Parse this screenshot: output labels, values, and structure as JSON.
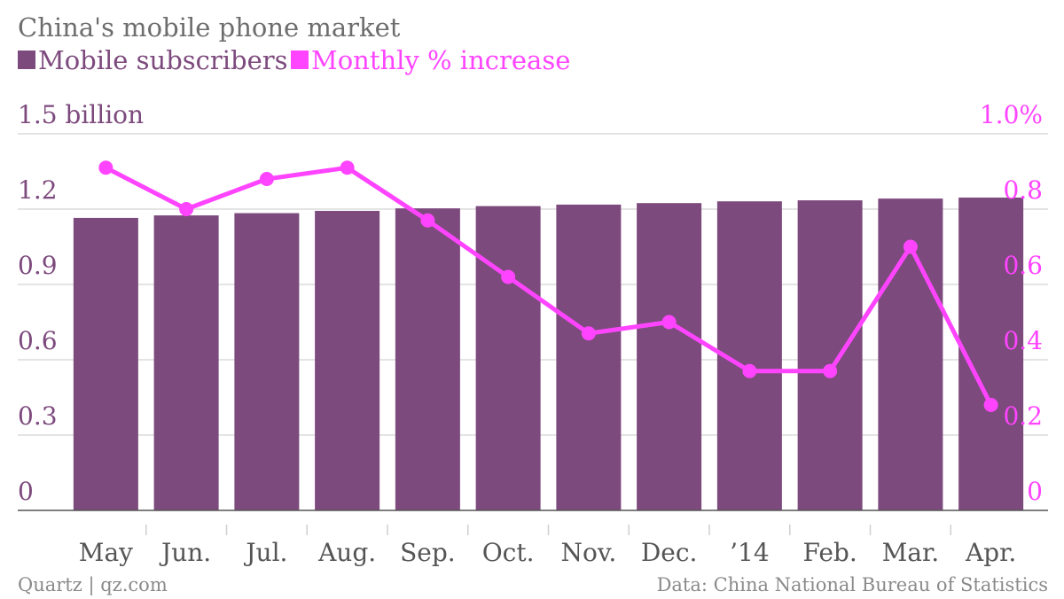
{
  "chart_data": {
    "type": "bar",
    "title": "China's mobile phone market",
    "categories": [
      "May",
      "Jun.",
      "Jul.",
      "Aug.",
      "Sep.",
      "Oct.",
      "Nov.",
      "Dec.",
      "’14",
      "Feb.",
      "Mar.",
      "Apr."
    ],
    "series": [
      {
        "name": "Mobile subscribers",
        "type": "bar",
        "axis": "left",
        "color": "#7d4a7d",
        "values": [
          1.165,
          1.175,
          1.184,
          1.193,
          1.203,
          1.212,
          1.218,
          1.224,
          1.231,
          1.235,
          1.242,
          1.246
        ]
      },
      {
        "name": "Monthly % increase",
        "type": "line",
        "axis": "right",
        "color": "#ff44ff",
        "values": [
          0.91,
          0.8,
          0.88,
          0.91,
          0.77,
          0.62,
          0.47,
          0.5,
          0.37,
          0.37,
          0.7,
          0.28
        ]
      }
    ],
    "y_left": {
      "ticks": [
        "0",
        "0.3",
        "0.6",
        "0.9",
        "1.2",
        "1.5 billion"
      ],
      "tick_values": [
        0,
        0.3,
        0.6,
        0.9,
        1.2,
        1.5
      ],
      "ylim": [
        0,
        1.5
      ]
    },
    "y_right": {
      "ticks": [
        "0",
        "0.2",
        "0.4",
        "0.6",
        "0.8",
        "1.0%"
      ],
      "tick_values": [
        0,
        0.2,
        0.4,
        0.6,
        0.8,
        1.0
      ],
      "ylim": [
        0,
        1.0
      ]
    },
    "grid": true,
    "legend_position": "top-left"
  },
  "footer": {
    "source_left": "Quartz | qz.com",
    "source_right": "Data: China National Bureau of Statistics"
  }
}
